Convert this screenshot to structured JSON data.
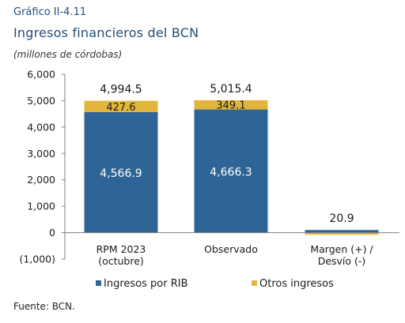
{
  "figure_label": "Gráfico II-4.11",
  "title": "Ingresos financieros del BCN",
  "subtitle": "(millones de córdobas)",
  "source": "Fuente: BCN.",
  "chart_data": {
    "type": "bar",
    "stacked": true,
    "categories": [
      "RPM 2023\n(octubre)",
      "Observado",
      "Margen (+) /\nDesvío (-)"
    ],
    "series": [
      {
        "name": "Ingresos por RIB",
        "color": "#2e6596",
        "values": [
          4566.9,
          4666.3,
          99.4
        ],
        "labels": [
          "4,566.9",
          "4,666.3",
          ""
        ]
      },
      {
        "name": "Otros ingresos",
        "color": "#e2b53d",
        "values": [
          427.6,
          349.1,
          -78.5
        ],
        "labels": [
          "427.6",
          "349.1",
          ""
        ]
      }
    ],
    "totals": [
      4994.5,
      5015.4,
      20.9
    ],
    "total_labels": [
      "4,994.5",
      "5,015.4",
      "20.9"
    ],
    "yticks": [
      -1000,
      0,
      1000,
      2000,
      3000,
      4000,
      5000,
      6000
    ],
    "ytick_labels": [
      "(1,000)",
      "0",
      "1,000",
      "2,000",
      "3,000",
      "4,000",
      "5,000",
      "6,000"
    ],
    "ylim": [
      -1000,
      6000
    ],
    "legend_position": "bottom"
  }
}
